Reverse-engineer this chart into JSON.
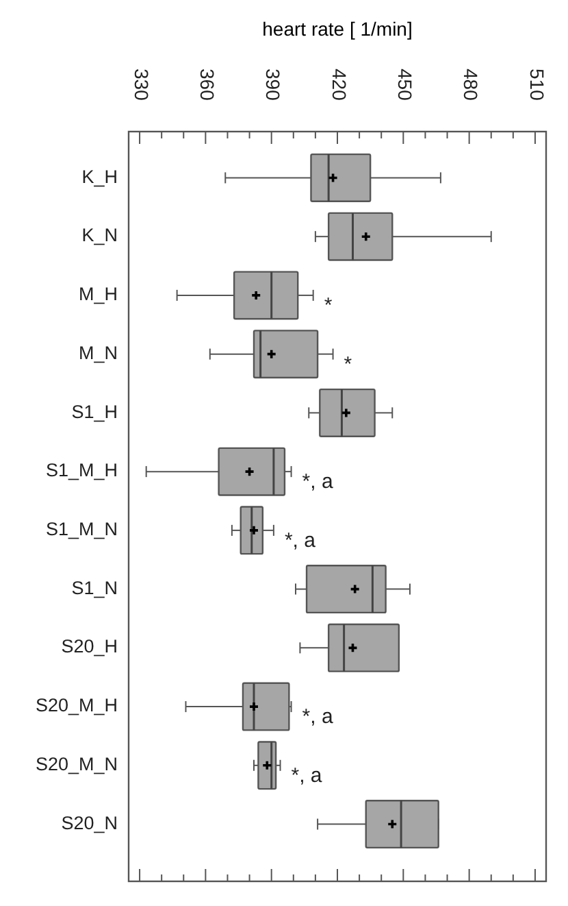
{
  "chart_data": {
    "type": "box",
    "orientation": "horizontal",
    "xlabel": "heart rate [ 1/min]",
    "categories": [
      "K_H",
      "K_N",
      "M_H",
      "M_N",
      "S1_H",
      "S1_M_H",
      "S1_M_N",
      "S1_N",
      "S20_H",
      "S20_M_H",
      "S20_M_N",
      "S20_N"
    ],
    "color": "#a6a6a6",
    "boxes": [
      {
        "low": 369,
        "q1": 408,
        "median": 416,
        "q3": 435,
        "high": 467,
        "mean": 418
      },
      {
        "low": 410,
        "q1": 416,
        "median": 427,
        "q3": 445,
        "high": 490,
        "mean": 433
      },
      {
        "low": 347,
        "q1": 373,
        "median": 390,
        "q3": 402,
        "high": 409,
        "mean": 383
      },
      {
        "low": 362,
        "q1": 382,
        "median": 385,
        "q3": 411,
        "high": 418,
        "mean": 390
      },
      {
        "low": 407,
        "q1": 412,
        "median": 422,
        "q3": 437,
        "high": 445,
        "mean": 424
      },
      {
        "low": 333,
        "q1": 366,
        "median": 391,
        "q3": 396,
        "high": 399,
        "mean": 380
      },
      {
        "low": 372,
        "q1": 376,
        "median": 381,
        "q3": 386,
        "high": 391,
        "mean": 382
      },
      {
        "low": 401,
        "q1": 406,
        "median": 436,
        "q3": 442,
        "high": 453,
        "mean": 428
      },
      {
        "low": 403,
        "q1": 416,
        "median": 423,
        "q3": 448,
        "high": 448,
        "mean": 427
      },
      {
        "low": 351,
        "q1": 377,
        "median": 382,
        "q3": 398,
        "high": 399,
        "mean": 382
      },
      {
        "low": 382,
        "q1": 384,
        "median": 390,
        "q3": 392,
        "high": 394,
        "mean": 388
      },
      {
        "low": 411,
        "q1": 433,
        "median": 449,
        "q3": 466,
        "high": 466,
        "mean": 445
      }
    ],
    "xlim": [
      325,
      515
    ],
    "xticks": [
      330,
      {
        "value": 340,
        "label": null
      },
      {
        "value": 350,
        "label": null
      },
      360,
      {
        "value": 370,
        "label": null
      },
      {
        "value": 380,
        "label": null
      },
      390,
      {
        "value": 400,
        "label": null
      },
      {
        "value": 410,
        "label": null
      },
      420,
      {
        "value": 430,
        "label": null
      },
      {
        "value": 440,
        "label": null
      },
      450,
      {
        "value": 460,
        "label": null
      },
      {
        "value": 470,
        "label": null
      },
      480,
      {
        "value": 490,
        "label": null
      },
      {
        "value": 500,
        "label": null
      },
      510
    ],
    "annotations": [
      {
        "text": "*",
        "x": 409,
        "y": "M_H"
      },
      {
        "text": "*",
        "x": 418,
        "y": "M_N"
      },
      {
        "text": "*, a",
        "x": 399,
        "y": "S1_M_H"
      },
      {
        "text": "*, a",
        "x": 391,
        "y": "S1_M_N"
      },
      {
        "text": "*, a",
        "x": 399,
        "y": "S20_M_H"
      },
      {
        "text": "*, a",
        "x": 394,
        "y": "S20_M_N"
      }
    ],
    "grid": false,
    "marker": "cross"
  }
}
